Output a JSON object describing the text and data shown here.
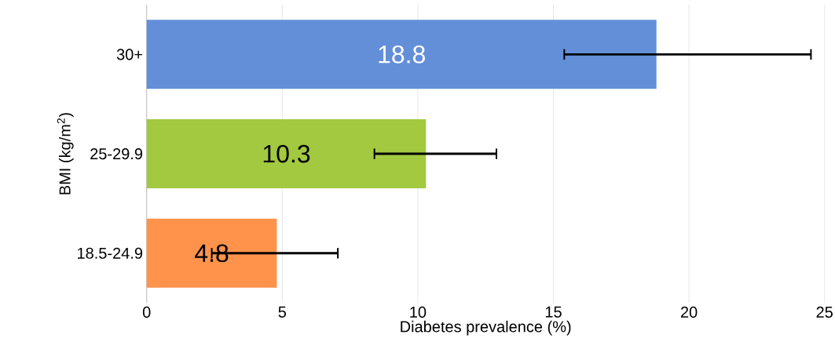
{
  "chart_data": {
    "type": "bar",
    "orientation": "horizontal",
    "xlabel": "Diabetes prevalence (%)",
    "ylabel": "BMI (kg/m$^{2}$)",
    "categories": [
      "30+",
      "25-29.9",
      "18.5-24.9"
    ],
    "values": [
      18.8,
      10.3,
      4.8
    ],
    "value_labels": [
      "18.8",
      "10.3",
      "4.8"
    ],
    "colors": [
      "#638fd8",
      "#a2c940",
      "#ff934b"
    ],
    "errors": [
      [
        15.4,
        24.5
      ],
      [
        8.4,
        12.9
      ],
      [
        2.4,
        7.05
      ]
    ],
    "xlim": [
      0,
      25
    ],
    "xticks": [
      0,
      5,
      10,
      15,
      20,
      25
    ],
    "grid": "x"
  }
}
